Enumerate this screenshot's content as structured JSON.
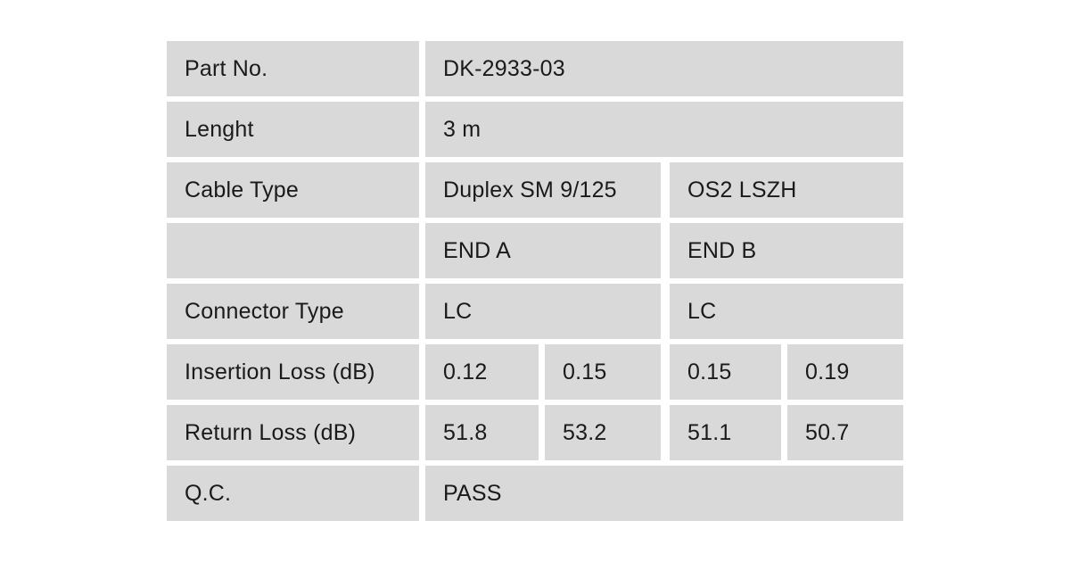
{
  "page": {
    "background": "#ffffff",
    "cell_background": "#d9d9d9",
    "text_color": "#1a1a1a"
  },
  "table": {
    "rows": {
      "part_no": {
        "label": "Part No.",
        "value": "DK-2933-03"
      },
      "length": {
        "label": "Lenght",
        "value": "3 m"
      },
      "cable_type": {
        "label": "Cable Type",
        "value_a": "Duplex SM 9/125",
        "value_b": "OS2 LSZH"
      },
      "ends": {
        "label": "",
        "end_a": "END A",
        "end_b": "END B"
      },
      "connector_type": {
        "label": "Connector Type",
        "end_a": "LC",
        "end_b": "LC"
      },
      "insertion_loss": {
        "label": "Insertion Loss (dB)",
        "end_a_1": "0.12",
        "end_a_2": "0.15",
        "end_b_1": "0.15",
        "end_b_2": "0.19"
      },
      "return_loss": {
        "label": "Return Loss (dB)",
        "end_a_1": "51.8",
        "end_a_2": "53.2",
        "end_b_1": "51.1",
        "end_b_2": "50.7"
      },
      "qc": {
        "label": "Q.C.",
        "value": "PASS"
      }
    }
  }
}
